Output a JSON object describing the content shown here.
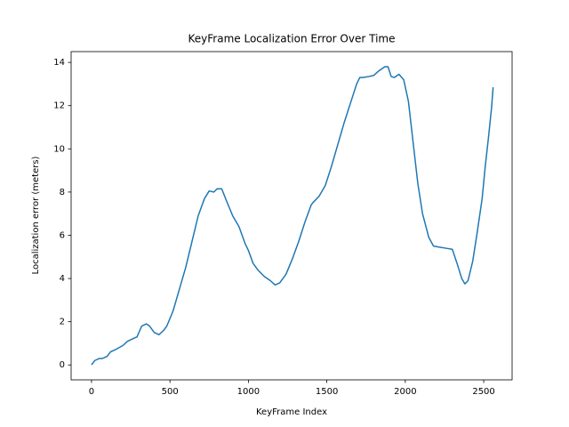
{
  "chart_data": {
    "type": "line",
    "title": "KeyFrame Localization Error Over Time",
    "x_label": "KeyFrame Index",
    "y_label": "Localization error (meters)",
    "x": [
      0,
      20,
      50,
      70,
      100,
      120,
      150,
      200,
      230,
      260,
      290,
      320,
      350,
      370,
      400,
      430,
      460,
      480,
      520,
      560,
      600,
      640,
      680,
      720,
      750,
      780,
      800,
      830,
      860,
      900,
      940,
      980,
      1000,
      1030,
      1060,
      1100,
      1140,
      1170,
      1200,
      1240,
      1280,
      1320,
      1360,
      1400,
      1410,
      1450,
      1490,
      1530,
      1570,
      1610,
      1650,
      1690,
      1710,
      1730,
      1770,
      1800,
      1830,
      1870,
      1890,
      1910,
      1930,
      1960,
      1990,
      2020,
      2050,
      2080,
      2110,
      2150,
      2180,
      2220,
      2260,
      2300,
      2330,
      2360,
      2380,
      2400,
      2430,
      2460,
      2490,
      2510,
      2530,
      2550,
      2560
    ],
    "series": [
      {
        "color": "#1f77b4",
        "values": [
          0,
          0.2,
          0.3,
          0.3,
          0.4,
          0.6,
          0.7,
          0.9,
          1.1,
          1.2,
          1.3,
          1.8,
          1.9,
          1.8,
          1.5,
          1.4,
          1.6,
          1.8,
          2.5,
          3.5,
          4.5,
          5.7,
          6.9,
          7.7,
          8.05,
          8.0,
          8.15,
          8.15,
          7.6,
          6.9,
          6.4,
          5.6,
          5.3,
          4.7,
          4.4,
          4.1,
          3.9,
          3.7,
          3.8,
          4.2,
          4.9,
          5.7,
          6.6,
          7.4,
          7.5,
          7.8,
          8.3,
          9.2,
          10.2,
          11.2,
          12.1,
          13.0,
          13.3,
          13.3,
          13.35,
          13.4,
          13.6,
          13.8,
          13.8,
          13.35,
          13.3,
          13.45,
          13.2,
          12.2,
          10.3,
          8.4,
          7.0,
          5.9,
          5.5,
          5.45,
          5.4,
          5.35,
          4.7,
          4.0,
          3.75,
          3.9,
          4.8,
          6.2,
          7.7,
          9.2,
          10.5,
          11.9,
          12.85
        ]
      }
    ],
    "xlim": [
      -130,
      2681
    ],
    "ylim": [
      -0.69,
      14.5
    ],
    "xticks": [
      0,
      500,
      1000,
      1500,
      2000,
      2500
    ],
    "yticks": [
      0,
      2,
      4,
      6,
      8,
      10,
      12,
      14
    ]
  }
}
